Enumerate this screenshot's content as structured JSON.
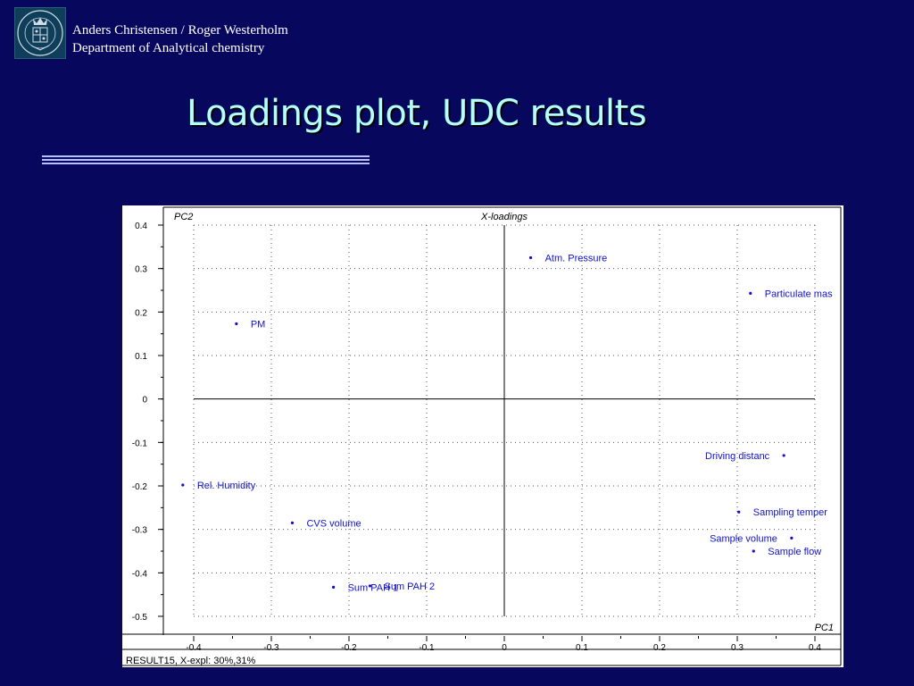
{
  "header": {
    "authors": "Anders Christensen / Roger Westerholm",
    "department": "Department of Analytical chemistry",
    "logo_icon": "university-seal-icon"
  },
  "slide": {
    "title": "Loadings plot, UDC results"
  },
  "chart_data": {
    "type": "scatter",
    "title": "X-loadings",
    "xlabel": "PC1",
    "ylabel": "PC2",
    "xlim": [
      -0.4,
      0.4
    ],
    "ylim": [
      -0.5,
      0.4
    ],
    "x_ticks": [
      "-0.4",
      "-0.3",
      "-0.2",
      "-0.1",
      "0",
      "0.1",
      "0.2",
      "0.3",
      "0.4"
    ],
    "y_ticks": [
      "0.4",
      "0.3",
      "0.2",
      "0.1",
      "0",
      "-0.1",
      "-0.2",
      "-0.3",
      "-0.4",
      "-0.5"
    ],
    "grid": true,
    "footer": "RESULT15,  X-expl: 30%,31%",
    "marker_color": "#1010d0",
    "points": [
      {
        "label": "Atm. Pressure",
        "x": 0.034,
        "y": 0.325,
        "label_side": "right"
      },
      {
        "label": "Particulate mas",
        "x": 0.317,
        "y": 0.243,
        "label_side": "right"
      },
      {
        "label": "PM",
        "x": -0.345,
        "y": 0.173,
        "label_side": "right"
      },
      {
        "label": "Driving distanc",
        "x": 0.36,
        "y": -0.13,
        "label_side": "left"
      },
      {
        "label": "Rel. Humidity",
        "x": -0.414,
        "y": -0.198,
        "label_side": "right"
      },
      {
        "label": "Sampling temper",
        "x": 0.302,
        "y": -0.26,
        "label_side": "right"
      },
      {
        "label": "CVS volume",
        "x": -0.273,
        "y": -0.285,
        "label_side": "right"
      },
      {
        "label": "Sample volume",
        "x": 0.37,
        "y": -0.32,
        "label_side": "left"
      },
      {
        "label": "Sample flow",
        "x": 0.321,
        "y": -0.35,
        "label_side": "right"
      },
      {
        "label": "Sum PAH 1",
        "x": -0.22,
        "y": -0.433,
        "label_side": "right"
      },
      {
        "label": "Sum PAH 2",
        "x": -0.173,
        "y": -0.43,
        "label_side": "right"
      }
    ]
  }
}
